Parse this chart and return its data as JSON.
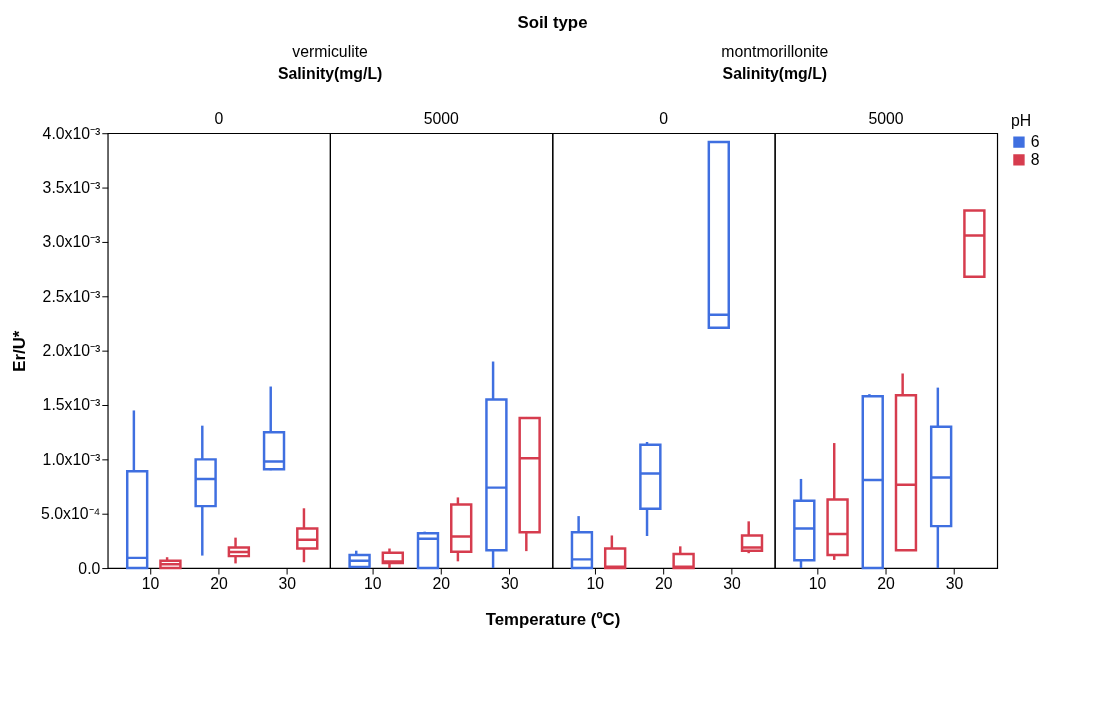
{
  "chart_data": [
    {
      "type": "box",
      "subtitle": "0",
      "annotations": [
        "vermiculite",
        "Salinity(mg/L)"
      ],
      "ylabel": "Er/U*",
      "categories": [
        "10",
        "20",
        "30"
      ],
      "ylim": [
        0,
        0.004
      ],
      "legend": "top right",
      "legend_title": "pH",
      "yticks": [
        {
          "value": 0,
          "label": "0.0"
        },
        {
          "value": 0.0005,
          "label": "5.0x10⁻⁴"
        },
        {
          "value": 0.001,
          "label": "1.0x10⁻³"
        },
        {
          "value": 0.0015,
          "label": "1.5x10⁻³"
        },
        {
          "value": 0.002,
          "label": "2.0x10⁻³"
        },
        {
          "value": 0.0025,
          "label": "2.5x10⁻³"
        },
        {
          "value": 0.003,
          "label": "3.0x10⁻³"
        },
        {
          "value": 0.0035,
          "label": "3.5x10⁻³"
        },
        {
          "value": 0.004,
          "label": "4.0x10⁻³"
        }
      ],
      "series": [
        {
          "name": "6",
          "color": "#3f6fe0",
          "boxes": [
            {
              "low": 0,
              "q1": 0,
              "median": 9.4e-05,
              "q3": 0.00089,
              "high": 0.00145
            },
            {
              "low": 0.000115,
              "q1": 0.00057,
              "median": 0.00082,
              "q3": 0.001,
              "high": 0.00131
            },
            {
              "low": 0.0009,
              "q1": 0.00091,
              "median": 0.00098,
              "q3": 0.00125,
              "high": 0.00167
            }
          ]
        },
        {
          "name": "8",
          "color": "#d63c4e",
          "boxes": [
            {
              "low": 0,
              "q1": 0,
              "median": 3.5e-05,
              "q3": 6.7e-05,
              "high": 0.0001
            },
            {
              "low": 4.3e-05,
              "q1": 0.00011,
              "median": 0.000148,
              "q3": 0.00019,
              "high": 0.00028
            },
            {
              "low": 5.4e-05,
              "q1": 0.00018,
              "median": 0.00026,
              "q3": 0.000365,
              "high": 0.00055
            }
          ]
        }
      ]
    },
    {
      "type": "box",
      "subtitle": "5000",
      "annotations": [
        "Soil type"
      ],
      "xlabel": "Temperature (ºC)",
      "categories": [
        "10",
        "20",
        "30"
      ],
      "ylim": [
        0,
        0.004
      ],
      "tick_labels": "x",
      "series": [
        {
          "name": "6",
          "color": "#3f6fe0",
          "boxes": [
            {
              "low": 1e-05,
              "q1": 1e-05,
              "median": 6.7e-05,
              "q3": 0.00012,
              "high": 0.00016
            },
            {
              "low": 0,
              "q1": 0,
              "median": 0.00027,
              "q3": 0.00032,
              "high": 0.000335
            },
            {
              "low": 0,
              "q1": 0.000164,
              "median": 0.00074,
              "q3": 0.00155,
              "high": 0.0019
            }
          ]
        },
        {
          "name": "8",
          "color": "#d63c4e",
          "boxes": [
            {
              "low": 0,
              "q1": 4.6e-05,
              "median": 6e-05,
              "q3": 0.00014,
              "high": 0.00018
            },
            {
              "low": 6.2e-05,
              "q1": 0.00015,
              "median": 0.00029,
              "q3": 0.000585,
              "high": 0.00065
            },
            {
              "low": 0.000156,
              "q1": 0.00033,
              "median": 0.00101,
              "q3": 0.00138,
              "high": 0.00139
            }
          ]
        }
      ]
    },
    {
      "type": "box",
      "subtitle": "0",
      "annotations": [
        "montmorillonite",
        "Salinity(mg/L)"
      ],
      "categories": [
        "10",
        "20",
        "30"
      ],
      "ylim": [
        0,
        0.004
      ],
      "tick_labels": "x",
      "series": [
        {
          "name": "6",
          "color": "#3f6fe0",
          "boxes": [
            {
              "low": 0,
              "q1": 0,
              "median": 8e-05,
              "q3": 0.00033,
              "high": 0.000478
            },
            {
              "low": 0.000295,
              "q1": 0.000545,
              "median": 0.00087,
              "q3": 0.001135,
              "high": 0.00116
            },
            {
              "low": 0.00221,
              "q1": 0.00221,
              "median": 0.00233,
              "q3": 0.00392,
              "high": 0.00392
            }
          ]
        },
        {
          "name": "8",
          "color": "#d63c4e",
          "boxes": [
            {
              "low": 0,
              "q1": 0,
              "median": 1.3e-05,
              "q3": 0.00018,
              "high": 0.0003
            },
            {
              "low": 0,
              "q1": 0,
              "median": 1.3e-05,
              "q3": 0.00013,
              "high": 0.0002
            },
            {
              "low": 0.000137,
              "q1": 0.00016,
              "median": 0.00019,
              "q3": 0.0003,
              "high": 0.00043
            }
          ]
        }
      ]
    },
    {
      "type": "box",
      "subtitle": "5000",
      "categories": [
        "10",
        "20",
        "30"
      ],
      "ylim": [
        0,
        0.004
      ],
      "tick_labels": "x",
      "series": [
        {
          "name": "6",
          "color": "#3f6fe0",
          "boxes": [
            {
              "low": 0,
              "q1": 7.2e-05,
              "median": 0.000365,
              "q3": 0.00062,
              "high": 0.00082
            },
            {
              "low": 0,
              "q1": 0,
              "median": 0.00081,
              "q3": 0.00158,
              "high": 0.0016
            },
            {
              "low": 0,
              "q1": 0.000386,
              "median": 0.000834,
              "q3": 0.0013,
              "high": 0.00166
            }
          ]
        },
        {
          "name": "8",
          "color": "#d63c4e",
          "boxes": [
            {
              "low": 7.5e-05,
              "q1": 0.00012,
              "median": 0.000314,
              "q3": 0.00063,
              "high": 0.00115
            },
            {
              "low": 0.000164,
              "q1": 0.000164,
              "median": 0.000767,
              "q3": 0.00159,
              "high": 0.00179
            },
            {
              "low": 0.00268,
              "q1": 0.00268,
              "median": 0.00306,
              "q3": 0.00329,
              "high": 0.00329
            }
          ]
        }
      ]
    }
  ]
}
